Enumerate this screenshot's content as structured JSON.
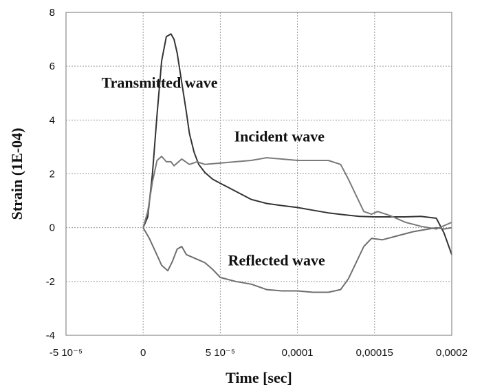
{
  "chart_data": {
    "type": "line",
    "xlabel": "Time [sec]",
    "ylabel": "Strain (1E-04)",
    "xlim": [
      -5e-05,
      0.0002
    ],
    "ylim": [
      -4,
      8
    ],
    "grid": true,
    "x_ticks": [
      -5e-05,
      0,
      5e-05,
      0.0001,
      0.00015,
      0.0002
    ],
    "x_tick_labels": [
      "-5 10⁻⁵",
      "0",
      "5 10⁻⁵",
      "0,0001",
      "0,00015",
      "0,0002"
    ],
    "y_ticks": [
      -4,
      -2,
      0,
      2,
      4,
      6,
      8
    ],
    "y_tick_labels": [
      "-4",
      "-2",
      "0",
      "2",
      "4",
      "6",
      "8"
    ],
    "series": [
      {
        "name": "Transmitted wave",
        "color": "#333333",
        "x": [
          0,
          3e-06,
          6e-06,
          9e-06,
          1.2e-05,
          1.5e-05,
          1.8e-05,
          2e-05,
          2.2e-05,
          2.5e-05,
          2.8e-05,
          3e-05,
          3.3e-05,
          3.6e-05,
          4e-05,
          4.5e-05,
          5e-05,
          5.5e-05,
          6e-05,
          6.5e-05,
          7e-05,
          8e-05,
          9e-05,
          0.0001,
          0.00011,
          0.00012,
          0.00013,
          0.00014,
          0.00015,
          0.00016,
          0.00017,
          0.00018,
          0.00019,
          0.000195,
          0.0002
        ],
        "y": [
          0,
          0.4,
          2.0,
          4.2,
          6.2,
          7.1,
          7.2,
          7.0,
          6.5,
          5.4,
          4.3,
          3.5,
          2.8,
          2.35,
          2.05,
          1.8,
          1.65,
          1.5,
          1.35,
          1.2,
          1.05,
          0.9,
          0.82,
          0.75,
          0.65,
          0.55,
          0.48,
          0.42,
          0.4,
          0.4,
          0.4,
          0.42,
          0.35,
          -0.2,
          -1.0
        ]
      },
      {
        "name": "Incident wave",
        "color": "#7a7a7a",
        "x": [
          0,
          3e-06,
          6e-06,
          9e-06,
          1.2e-05,
          1.5e-05,
          1.8e-05,
          2e-05,
          2.5e-05,
          3e-05,
          3.5e-05,
          4e-05,
          5e-05,
          6e-05,
          7e-05,
          8e-05,
          9e-05,
          0.0001,
          0.00011,
          0.00012,
          0.000128,
          0.000133,
          0.000138,
          0.000143,
          0.000148,
          0.000152,
          0.00016,
          0.00017,
          0.00018,
          0.00019,
          0.0002
        ],
        "y": [
          0,
          0.6,
          1.7,
          2.5,
          2.65,
          2.45,
          2.45,
          2.3,
          2.55,
          2.35,
          2.45,
          2.35,
          2.4,
          2.45,
          2.5,
          2.6,
          2.55,
          2.5,
          2.5,
          2.5,
          2.35,
          1.8,
          1.2,
          0.6,
          0.5,
          0.6,
          0.45,
          0.2,
          0.05,
          -0.05,
          0.2
        ]
      },
      {
        "name": "Reflected wave",
        "color": "#6e6e6e",
        "x": [
          0,
          4e-06,
          8e-06,
          1.2e-05,
          1.6e-05,
          1.9e-05,
          2.2e-05,
          2.5e-05,
          2.8e-05,
          3.2e-05,
          3.6e-05,
          4e-05,
          4.5e-05,
          5e-05,
          6e-05,
          7e-05,
          8e-05,
          9e-05,
          0.0001,
          0.00011,
          0.00012,
          0.000128,
          0.000133,
          0.000138,
          0.000143,
          0.000148,
          0.000155,
          0.000165,
          0.000175,
          0.000185,
          0.00019,
          0.000195,
          0.0002
        ],
        "y": [
          0,
          -0.4,
          -0.9,
          -1.4,
          -1.6,
          -1.25,
          -0.8,
          -0.7,
          -1.0,
          -1.1,
          -1.2,
          -1.3,
          -1.55,
          -1.85,
          -2.0,
          -2.1,
          -2.3,
          -2.35,
          -2.35,
          -2.4,
          -2.4,
          -2.3,
          -1.9,
          -1.3,
          -0.7,
          -0.4,
          -0.45,
          -0.3,
          -0.15,
          -0.05,
          0.0,
          -0.05,
          0.0
        ]
      }
    ],
    "annotations": [
      {
        "text": "Transmitted wave",
        "x": -2.7e-05,
        "y": 5.2
      },
      {
        "text": "Incident wave",
        "x": 5.9e-05,
        "y": 3.2
      },
      {
        "text": "Reflected wave",
        "x": 5.5e-05,
        "y": -1.4
      }
    ]
  }
}
